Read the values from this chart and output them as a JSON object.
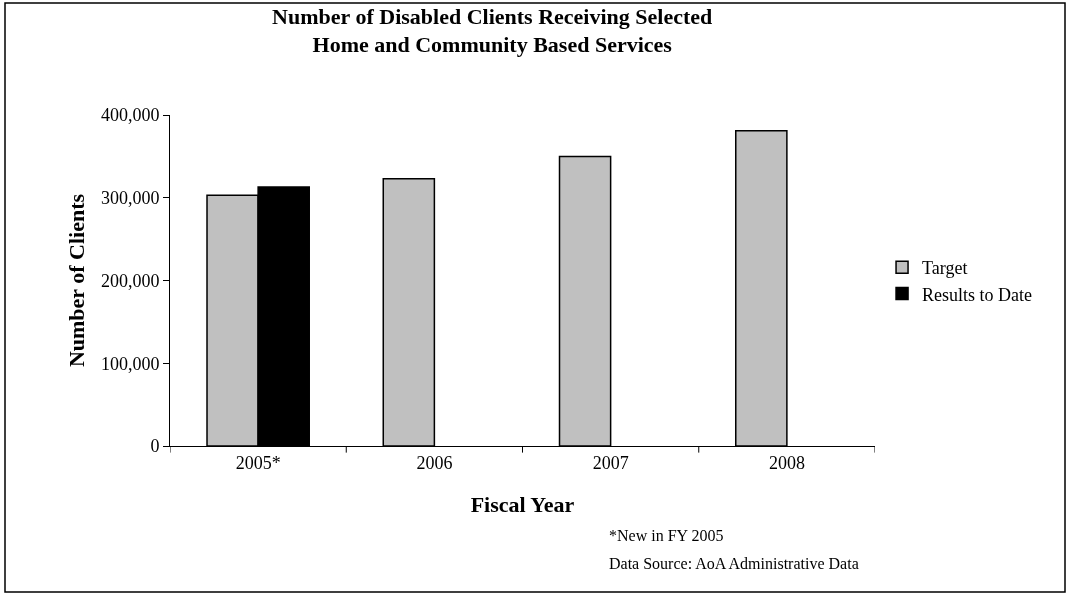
{
  "chart_data": {
    "type": "bar",
    "title": "Number of Disabled Clients Receiving Selected\nHome and Community Based Services",
    "xlabel": "Fiscal Year",
    "ylabel": "Number of Clients",
    "categories": [
      "2005*",
      "2006",
      "2007",
      "2008"
    ],
    "series": [
      {
        "name": "Target",
        "color": "#c0c0c0",
        "values": [
          303000,
          323000,
          350000,
          381000
        ]
      },
      {
        "name": "Results to Date",
        "color": "#000000",
        "values": [
          313000,
          null,
          null,
          null
        ]
      }
    ],
    "ylim": [
      0,
      400000
    ],
    "yticks": [
      {
        "value": 0,
        "label": "0"
      },
      {
        "value": 100000,
        "label": "100,000"
      },
      {
        "value": 200000,
        "label": "200,000"
      },
      {
        "value": 300000,
        "label": "300,000"
      },
      {
        "value": 400000,
        "label": "400,000"
      }
    ],
    "grid": false,
    "legend": "right",
    "annotations": [
      "*New in FY 2005",
      "Data Source: AoA Administrative Data"
    ]
  }
}
